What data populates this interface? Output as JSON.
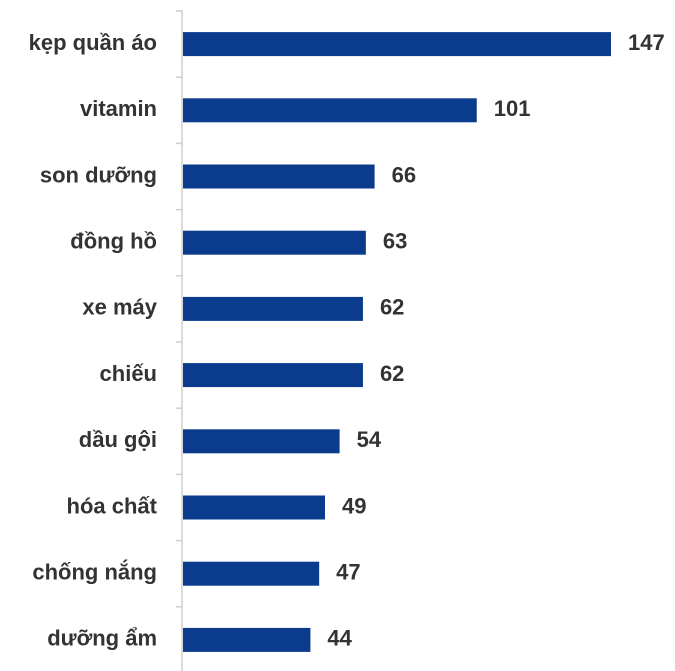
{
  "chart_data": {
    "type": "bar",
    "orientation": "horizontal",
    "categories": [
      "kẹp quần áo",
      "vitamin",
      "son dưỡng",
      "đồng hồ",
      "xe máy",
      "chiếu",
      "dầu gội",
      "hóa chất",
      "chống nắng",
      "dưỡng ẩm"
    ],
    "values": [
      147,
      101,
      66,
      63,
      62,
      62,
      54,
      49,
      47,
      44
    ],
    "color": "#0a3b8c"
  }
}
